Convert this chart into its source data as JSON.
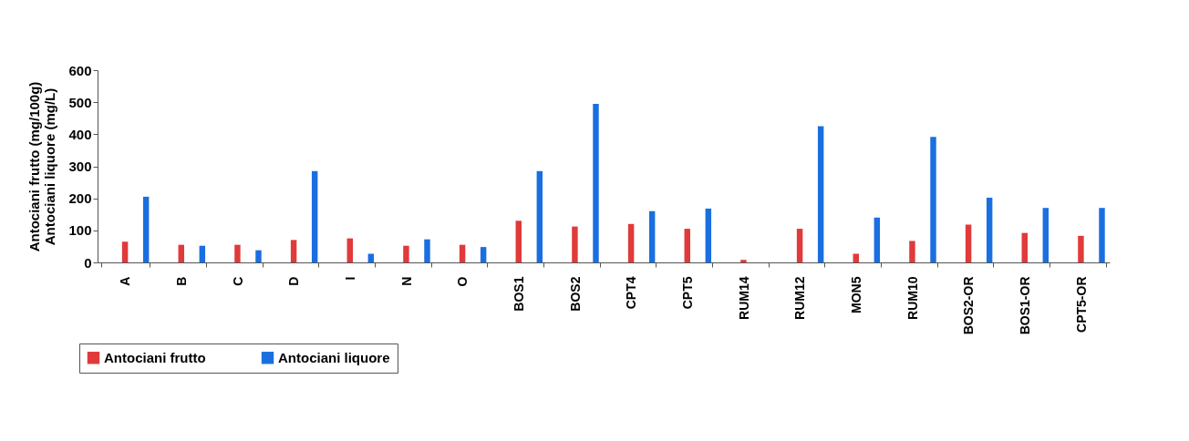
{
  "chart_data": {
    "type": "bar",
    "ylabel": "Antociani frutto (mg/100g)\nAntociani liquore (mg/L)",
    "categories": [
      "A",
      "B",
      "C",
      "D",
      "I",
      "N",
      "O",
      "BOS1",
      "BOS2",
      "CPT4",
      "CPT5",
      "RUM14",
      "RUM12",
      "MON5",
      "RUM10",
      "BOS2-OR",
      "BOS1-OR",
      "CPT5-OR"
    ],
    "series": [
      {
        "name": "Antociani frutto",
        "color": "#e03a3a",
        "values": [
          65,
          55,
          55,
          70,
          75,
          52,
          55,
          130,
          112,
          120,
          105,
          8,
          105,
          27,
          67,
          118,
          92,
          83
        ]
      },
      {
        "name": "Antociani liquore",
        "color": "#1a6fe0",
        "values": [
          205,
          52,
          38,
          285,
          27,
          72,
          48,
          285,
          495,
          160,
          168,
          0,
          425,
          140,
          392,
          202,
          170,
          170
        ]
      }
    ],
    "ylim": [
      0,
      600
    ],
    "yticks": [
      0,
      100,
      200,
      300,
      400,
      500,
      600
    ],
    "grid": false,
    "legend": "bottom left"
  }
}
